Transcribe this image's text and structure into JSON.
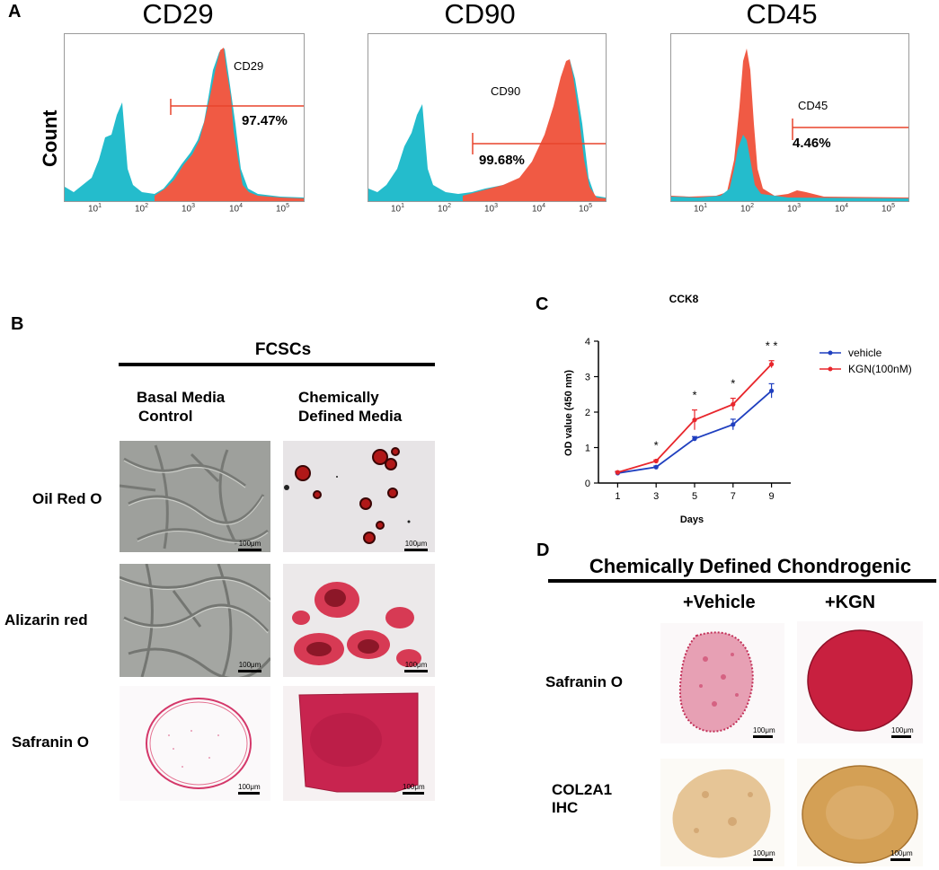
{
  "panel_a": {
    "letter": "A",
    "ylabel": "Count",
    "tick_base": "10",
    "plots": [
      {
        "title": "CD29",
        "gate_label": "CD29",
        "gate_pct": "97.47%"
      },
      {
        "title": "CD90",
        "gate_label": "CD90",
        "gate_pct": "99.68%"
      },
      {
        "title": "CD45",
        "gate_label": "CD45",
        "gate_pct": "4.46%"
      }
    ],
    "tick_exponents": [
      "1",
      "2",
      "3",
      "4",
      "5"
    ]
  },
  "panel_b": {
    "letter": "B",
    "group_label": "FCSCs",
    "col1": [
      "Basal Media",
      "Control"
    ],
    "col2": [
      "Chemically",
      "Defined Media"
    ],
    "rows": [
      "Oil Red O",
      "Alizarin red",
      "Safranin O"
    ],
    "scale_label": "100μm"
  },
  "panel_c": {
    "letter": "C",
    "chart_data": {
      "type": "line",
      "title": "CCK8",
      "xlabel": "Days",
      "ylabel": "OD value (450 nm)",
      "x": [
        1,
        3,
        5,
        7,
        9
      ],
      "ylim": [
        0,
        4
      ],
      "yticks": [
        "0",
        "1",
        "2",
        "3",
        "4"
      ],
      "xticks": [
        "1",
        "3",
        "5",
        "7",
        "9"
      ],
      "series": [
        {
          "name": "vehicle",
          "color": "#1f3fbf",
          "values": [
            0.28,
            0.45,
            1.25,
            1.65,
            2.6
          ],
          "errors": [
            0.03,
            0.03,
            0.06,
            0.15,
            0.2
          ]
        },
        {
          "name": "KGN(100nM)",
          "color": "#e8262c",
          "values": [
            0.3,
            0.62,
            1.78,
            2.22,
            3.35
          ],
          "errors": [
            0.03,
            0.03,
            0.28,
            0.17,
            0.1
          ]
        }
      ],
      "annotations": [
        "*",
        "*",
        "*",
        "* *"
      ],
      "annotation_x": [
        3,
        5,
        7,
        9
      ]
    }
  },
  "panel_d": {
    "letter": "D",
    "group_label": "Chemically Defined Chondrogenic",
    "col1": "+Vehicle",
    "col2": "+KGN",
    "rows": [
      "Safranin O",
      "COL2A1",
      "IHC"
    ],
    "scale_label": "100μm"
  }
}
